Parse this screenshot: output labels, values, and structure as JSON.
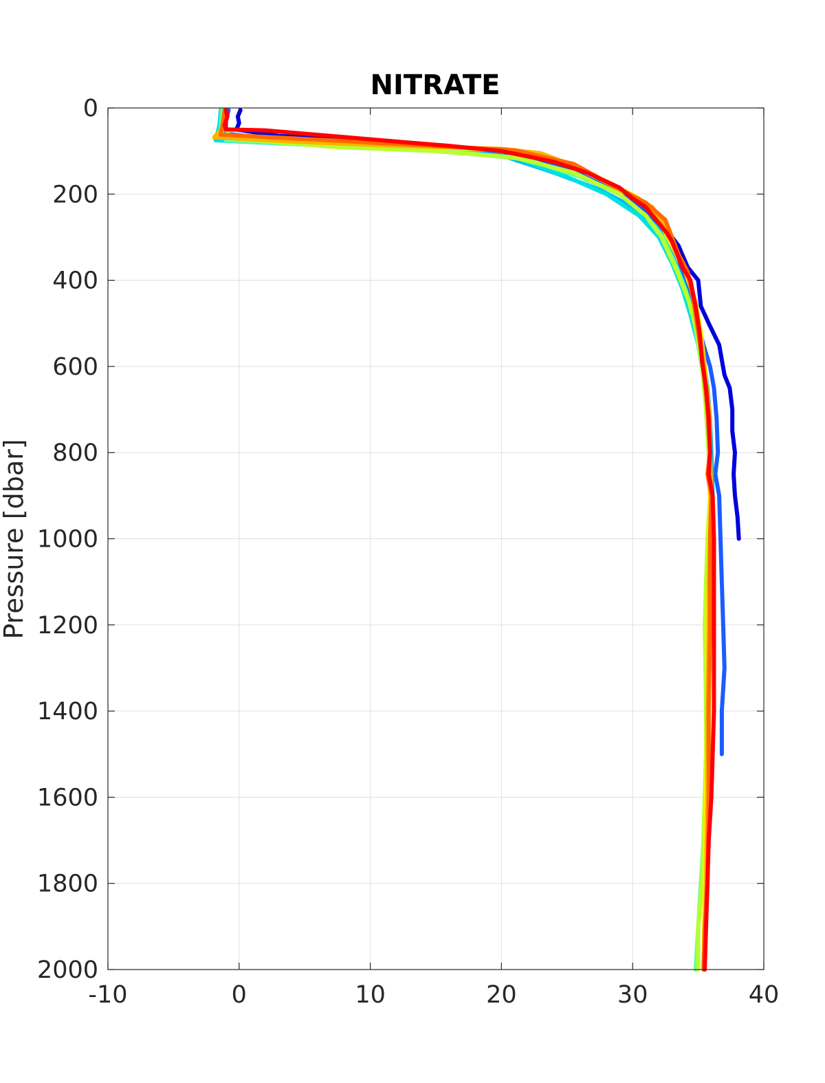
{
  "chart_data": {
    "type": "line",
    "title": "NITRATE",
    "xlabel": "",
    "ylabel": "Pressure [dbar]",
    "xlim": [
      -10,
      40
    ],
    "ylim": [
      0,
      2000
    ],
    "y_reversed": true,
    "grid": true,
    "x_ticks": [
      -10,
      0,
      10,
      20,
      30,
      40
    ],
    "y_ticks": [
      0,
      200,
      400,
      600,
      800,
      1000,
      1200,
      1400,
      1600,
      1800,
      2000
    ],
    "x_tick_labels": [
      "-10",
      "0",
      "10",
      "20",
      "30",
      "40"
    ],
    "y_tick_labels": [
      "0",
      "200",
      "400",
      "600",
      "800",
      "1000",
      "1200",
      "1400",
      "1600",
      "1800",
      "2000"
    ],
    "series": [
      {
        "color": "#0000dd",
        "points": [
          [
            0.1,
            5
          ],
          [
            -0.1,
            20
          ],
          [
            0.0,
            35
          ],
          [
            -0.2,
            50
          ],
          [
            3,
            65
          ],
          [
            10,
            75
          ],
          [
            18,
            95
          ],
          [
            23,
            115
          ],
          [
            26,
            140
          ],
          [
            29,
            190
          ],
          [
            31,
            230
          ],
          [
            32.5,
            280
          ],
          [
            33.5,
            320
          ],
          [
            34.2,
            370
          ],
          [
            35,
            400
          ],
          [
            35.2,
            460
          ],
          [
            35.8,
            500
          ],
          [
            36.6,
            550
          ],
          [
            37.0,
            620
          ],
          [
            37.4,
            650
          ],
          [
            37.6,
            700
          ],
          [
            37.6,
            750
          ],
          [
            37.8,
            800
          ],
          [
            37.7,
            850
          ],
          [
            37.8,
            900
          ],
          [
            38.0,
            950
          ],
          [
            38.1,
            1000
          ]
        ]
      },
      {
        "color": "#1a5cff",
        "points": [
          [
            -0.8,
            5
          ],
          [
            -1.0,
            30
          ],
          [
            -1.0,
            60
          ],
          [
            5,
            80
          ],
          [
            14,
            95
          ],
          [
            21,
            110
          ],
          [
            25,
            140
          ],
          [
            28.5,
            190
          ],
          [
            31,
            240
          ],
          [
            32.5,
            290
          ],
          [
            33.5,
            350
          ],
          [
            34.2,
            420
          ],
          [
            34.8,
            480
          ],
          [
            35.4,
            550
          ],
          [
            35.9,
            600
          ],
          [
            36.2,
            650
          ],
          [
            36.4,
            720
          ],
          [
            36.5,
            800
          ],
          [
            36.3,
            850
          ],
          [
            36.6,
            900
          ],
          [
            36.7,
            1000
          ],
          [
            36.8,
            1100
          ],
          [
            36.9,
            1200
          ],
          [
            37.0,
            1300
          ],
          [
            36.8,
            1400
          ],
          [
            36.8,
            1500
          ]
        ]
      },
      {
        "color": "#00b4ff",
        "points": [
          [
            -1.2,
            5
          ],
          [
            -1.3,
            30
          ],
          [
            -1.5,
            70
          ],
          [
            3,
            80
          ],
          [
            12,
            90
          ],
          [
            20,
            110
          ],
          [
            24,
            150
          ],
          [
            27.5,
            190
          ],
          [
            30,
            230
          ],
          [
            32,
            280
          ],
          [
            33,
            340
          ],
          [
            33.8,
            400
          ],
          [
            34.5,
            460
          ],
          [
            35,
            520
          ],
          [
            35.4,
            580
          ],
          [
            35.7,
            650
          ],
          [
            35.9,
            720
          ],
          [
            36.0,
            800
          ],
          [
            36.1,
            900
          ],
          [
            36.0,
            1000
          ],
          [
            36.0,
            1100
          ]
        ]
      },
      {
        "color": "#00e0e0",
        "points": [
          [
            -1.4,
            5
          ],
          [
            -1.5,
            40
          ],
          [
            -1.8,
            75
          ],
          [
            5,
            85
          ],
          [
            13,
            95
          ],
          [
            21,
            115
          ],
          [
            25,
            160
          ],
          [
            28,
            200
          ],
          [
            30.5,
            250
          ],
          [
            32,
            300
          ],
          [
            33,
            360
          ],
          [
            33.8,
            420
          ],
          [
            34.4,
            480
          ],
          [
            35.0,
            550
          ],
          [
            35.4,
            620
          ],
          [
            35.7,
            700
          ],
          [
            35.9,
            800
          ],
          [
            35.9,
            900
          ]
        ]
      },
      {
        "color": "#66ff99",
        "points": [
          [
            -1.3,
            5
          ],
          [
            -1.4,
            50
          ],
          [
            -1.0,
            75
          ],
          [
            8,
            90
          ],
          [
            16,
            100
          ],
          [
            22,
            120
          ],
          [
            26,
            160
          ],
          [
            29,
            200
          ],
          [
            31,
            250
          ],
          [
            32.3,
            300
          ],
          [
            33.2,
            360
          ],
          [
            34.0,
            420
          ],
          [
            34.6,
            480
          ],
          [
            35.0,
            550
          ],
          [
            35.4,
            620
          ],
          [
            35.6,
            700
          ],
          [
            35.8,
            800
          ],
          [
            35.9,
            900
          ],
          [
            35.8,
            1000
          ],
          [
            35.7,
            1100
          ],
          [
            35.7,
            1200
          ],
          [
            35.6,
            1400
          ],
          [
            35.6,
            1500
          ],
          [
            35.5,
            1600
          ],
          [
            35.4,
            1700
          ],
          [
            35.2,
            1800
          ],
          [
            35.0,
            1900
          ],
          [
            34.8,
            2000
          ]
        ]
      },
      {
        "color": "#b8ff2e",
        "points": [
          [
            -1.1,
            5
          ],
          [
            -1.2,
            40
          ],
          [
            -0.6,
            70
          ],
          [
            7,
            90
          ],
          [
            15,
            100
          ],
          [
            21,
            115
          ],
          [
            25.5,
            150
          ],
          [
            29,
            200
          ],
          [
            31,
            250
          ],
          [
            32.2,
            300
          ],
          [
            33.4,
            380
          ],
          [
            34.3,
            450
          ],
          [
            34.9,
            520
          ],
          [
            35.3,
            600
          ],
          [
            35.6,
            700
          ],
          [
            35.8,
            800
          ],
          [
            35.9,
            900
          ],
          [
            35.7,
            1000
          ],
          [
            35.6,
            1100
          ],
          [
            35.5,
            1200
          ],
          [
            35.6,
            1400
          ],
          [
            35.6,
            1500
          ],
          [
            35.5,
            1600
          ],
          [
            35.3,
            1800
          ],
          [
            35.0,
            1900
          ],
          [
            35.0,
            2000
          ]
        ]
      },
      {
        "color": "#ffee00",
        "points": [
          [
            -1.0,
            5
          ],
          [
            -1.1,
            40
          ],
          [
            -1.6,
            68
          ],
          [
            5,
            78
          ],
          [
            13,
            88
          ],
          [
            21,
            100
          ],
          [
            25,
            130
          ],
          [
            28,
            170
          ],
          [
            30.5,
            210
          ],
          [
            32,
            260
          ],
          [
            33,
            320
          ],
          [
            34,
            380
          ],
          [
            34.8,
            450
          ],
          [
            35.2,
            520
          ],
          [
            35.5,
            600
          ],
          [
            35.8,
            700
          ],
          [
            35.9,
            800
          ],
          [
            35.9,
            900
          ],
          [
            35.8,
            1000
          ],
          [
            35.8,
            1100
          ],
          [
            35.7,
            1200
          ],
          [
            35.7,
            1400
          ],
          [
            35.6,
            1600
          ],
          [
            35.5,
            1800
          ],
          [
            35.4,
            2000
          ]
        ]
      },
      {
        "color": "#ffb300",
        "points": [
          [
            -1.0,
            5
          ],
          [
            -1.1,
            40
          ],
          [
            -1.9,
            68
          ],
          [
            4,
            78
          ],
          [
            12,
            88
          ],
          [
            20,
            95
          ],
          [
            23,
            105
          ],
          [
            26,
            140
          ],
          [
            29,
            190
          ],
          [
            31.5,
            230
          ],
          [
            32.5,
            280
          ],
          [
            33.5,
            340
          ],
          [
            34.3,
            400
          ],
          [
            34.9,
            480
          ],
          [
            35.3,
            560
          ],
          [
            35.6,
            640
          ],
          [
            35.9,
            720
          ],
          [
            35.9,
            800
          ],
          [
            36.0,
            900
          ],
          [
            35.9,
            1000
          ],
          [
            35.8,
            1100
          ],
          [
            35.8,
            1200
          ],
          [
            35.7,
            1400
          ],
          [
            35.7,
            1600
          ],
          [
            35.6,
            1800
          ],
          [
            35.5,
            2000
          ]
        ]
      },
      {
        "color": "#ff6a00",
        "points": [
          [
            -1.1,
            5
          ],
          [
            -1.2,
            30
          ],
          [
            -1.4,
            62
          ],
          [
            5,
            72
          ],
          [
            13,
            85
          ],
          [
            21,
            98
          ],
          [
            25.5,
            130
          ],
          [
            28.5,
            180
          ],
          [
            31,
            220
          ],
          [
            32.5,
            260
          ],
          [
            33,
            300
          ],
          [
            33.5,
            340
          ],
          [
            34.2,
            380
          ],
          [
            34.6,
            440
          ],
          [
            35.0,
            520
          ],
          [
            35.4,
            600
          ],
          [
            35.7,
            700
          ],
          [
            35.9,
            800
          ],
          [
            35.7,
            850
          ],
          [
            36.0,
            900
          ],
          [
            35.9,
            1000
          ],
          [
            35.9,
            1100
          ],
          [
            35.9,
            1200
          ],
          [
            35.8,
            1400
          ],
          [
            35.8,
            1600
          ],
          [
            35.7,
            1800
          ],
          [
            35.5,
            1900
          ],
          [
            35.4,
            2000
          ]
        ]
      },
      {
        "color": "#ff0000",
        "points": [
          [
            -1.0,
            5
          ],
          [
            -0.9,
            20
          ],
          [
            -1.1,
            40
          ],
          [
            -1.0,
            50
          ],
          [
            2,
            52
          ],
          [
            7,
            65
          ],
          [
            12,
            78
          ],
          [
            16,
            88
          ],
          [
            20,
            100
          ],
          [
            24,
            125
          ],
          [
            26.5,
            150
          ],
          [
            29,
            185
          ],
          [
            30,
            210
          ],
          [
            31,
            230
          ],
          [
            31.8,
            260
          ],
          [
            32.6,
            290
          ],
          [
            33.0,
            310
          ],
          [
            33.4,
            340
          ],
          [
            33.8,
            370
          ],
          [
            34.4,
            400
          ],
          [
            34.8,
            460
          ],
          [
            35.1,
            520
          ],
          [
            35.3,
            590
          ],
          [
            35.6,
            650
          ],
          [
            35.8,
            720
          ],
          [
            35.9,
            800
          ],
          [
            35.8,
            850
          ],
          [
            36.1,
            900
          ],
          [
            36.2,
            1000
          ],
          [
            36.2,
            1100
          ],
          [
            36.2,
            1200
          ],
          [
            36.2,
            1300
          ],
          [
            36.2,
            1400
          ],
          [
            36.1,
            1500
          ],
          [
            36.0,
            1600
          ],
          [
            35.8,
            1700
          ],
          [
            35.7,
            1800
          ],
          [
            35.6,
            1900
          ],
          [
            35.5,
            2000
          ]
        ]
      }
    ]
  }
}
